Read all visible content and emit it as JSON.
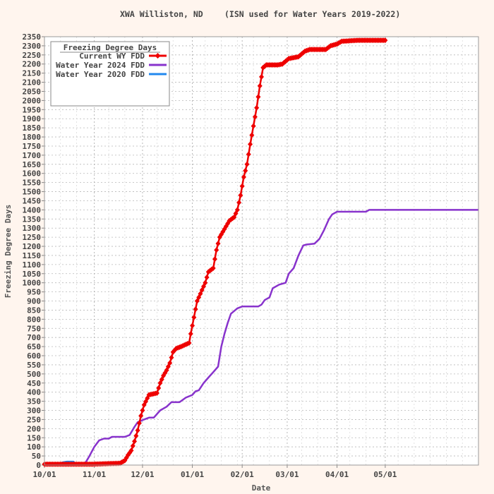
{
  "chart_data": {
    "type": "line",
    "title_left": "XWA Williston, ND",
    "title_right": "(ISN used for Water Years 2019-2022)",
    "xlabel": "Date",
    "ylabel": "Freezing Degree Days",
    "ylim": [
      0,
      2350
    ],
    "ytick_step": 50,
    "yticks": [
      "0",
      "50",
      "100",
      "150",
      "200",
      "250",
      "300",
      "350",
      "400",
      "450",
      "500",
      "550",
      "600",
      "650",
      "700",
      "750",
      "800",
      "850",
      "900",
      "950",
      "1000",
      "1050",
      "1100",
      "1150",
      "1200",
      "1250",
      "1300",
      "1350",
      "1400",
      "1450",
      "1500",
      "1550",
      "1600",
      "1650",
      "1700",
      "1750",
      "1800",
      "1850",
      "1900",
      "1950",
      "2000",
      "2050",
      "2100",
      "2150",
      "2200",
      "2250",
      "2300",
      "2350"
    ],
    "xlim_days": [
      0,
      270
    ],
    "xticks": [
      {
        "day": 0,
        "label": "10/01"
      },
      {
        "day": 31,
        "label": "11/01"
      },
      {
        "day": 61,
        "label": "12/01"
      },
      {
        "day": 92,
        "label": "01/01"
      },
      {
        "day": 123,
        "label": "02/01"
      },
      {
        "day": 151,
        "label": "03/01"
      },
      {
        "day": 182,
        "label": "04/01"
      },
      {
        "day": 212,
        "label": "05/01"
      }
    ],
    "grid": true,
    "legend": {
      "title": "Freezing Degree Days",
      "placement": "top-left"
    },
    "series": [
      {
        "name": "Current WY FDD",
        "color": "#ee0000",
        "marker": "diamond",
        "points": [
          [
            0,
            5
          ],
          [
            10,
            5
          ],
          [
            20,
            5
          ],
          [
            30,
            5
          ],
          [
            40,
            8
          ],
          [
            47,
            10
          ],
          [
            50,
            25
          ],
          [
            52,
            55
          ],
          [
            54,
            80
          ],
          [
            56,
            130
          ],
          [
            58,
            190
          ],
          [
            60,
            270
          ],
          [
            62,
            330
          ],
          [
            65,
            385
          ],
          [
            70,
            395
          ],
          [
            72,
            450
          ],
          [
            74,
            490
          ],
          [
            76,
            520
          ],
          [
            78,
            560
          ],
          [
            80,
            620
          ],
          [
            82,
            640
          ],
          [
            85,
            650
          ],
          [
            90,
            670
          ],
          [
            91,
            720
          ],
          [
            93,
            810
          ],
          [
            95,
            900
          ],
          [
            98,
            960
          ],
          [
            100,
            1000
          ],
          [
            102,
            1060
          ],
          [
            105,
            1080
          ],
          [
            107,
            1180
          ],
          [
            109,
            1250
          ],
          [
            111,
            1280
          ],
          [
            113,
            1310
          ],
          [
            115,
            1340
          ],
          [
            118,
            1360
          ],
          [
            120,
            1400
          ],
          [
            122,
            1480
          ],
          [
            124,
            1580
          ],
          [
            126,
            1650
          ],
          [
            128,
            1760
          ],
          [
            130,
            1860
          ],
          [
            132,
            1960
          ],
          [
            134,
            2080
          ],
          [
            136,
            2180
          ],
          [
            138,
            2195
          ],
          [
            145,
            2195
          ],
          [
            148,
            2200
          ],
          [
            152,
            2230
          ],
          [
            158,
            2240
          ],
          [
            162,
            2270
          ],
          [
            165,
            2280
          ],
          [
            175,
            2280
          ],
          [
            178,
            2300
          ],
          [
            182,
            2310
          ],
          [
            185,
            2325
          ],
          [
            195,
            2330
          ],
          [
            200,
            2330
          ],
          [
            212,
            2330
          ]
        ]
      },
      {
        "name": "Water Year 2024 FDD",
        "color": "#8833cc",
        "points": [
          [
            0,
            5
          ],
          [
            25,
            5
          ],
          [
            28,
            50
          ],
          [
            31,
            100
          ],
          [
            34,
            135
          ],
          [
            37,
            145
          ],
          [
            40,
            145
          ],
          [
            42,
            155
          ],
          [
            50,
            155
          ],
          [
            53,
            165
          ],
          [
            56,
            210
          ],
          [
            58,
            235
          ],
          [
            62,
            250
          ],
          [
            65,
            260
          ],
          [
            68,
            260
          ],
          [
            72,
            300
          ],
          [
            76,
            320
          ],
          [
            79,
            345
          ],
          [
            84,
            345
          ],
          [
            88,
            370
          ],
          [
            92,
            385
          ],
          [
            94,
            405
          ],
          [
            96,
            410
          ],
          [
            99,
            450
          ],
          [
            102,
            480
          ],
          [
            105,
            510
          ],
          [
            108,
            540
          ],
          [
            110,
            650
          ],
          [
            112,
            720
          ],
          [
            114,
            780
          ],
          [
            116,
            830
          ],
          [
            120,
            860
          ],
          [
            123,
            870
          ],
          [
            133,
            870
          ],
          [
            135,
            880
          ],
          [
            137,
            905
          ],
          [
            140,
            920
          ],
          [
            142,
            970
          ],
          [
            146,
            990
          ],
          [
            150,
            1000
          ],
          [
            152,
            1050
          ],
          [
            155,
            1080
          ],
          [
            158,
            1150
          ],
          [
            161,
            1205
          ],
          [
            163,
            1210
          ],
          [
            168,
            1215
          ],
          [
            171,
            1240
          ],
          [
            174,
            1290
          ],
          [
            177,
            1350
          ],
          [
            179,
            1375
          ],
          [
            182,
            1390
          ],
          [
            200,
            1390
          ],
          [
            202,
            1400
          ],
          [
            270,
            1400
          ]
        ]
      },
      {
        "name": "Water Year 2020 FDD",
        "color": "#2288ee",
        "points": [
          [
            0,
            3
          ],
          [
            4,
            3
          ],
          [
            7,
            5
          ],
          [
            10,
            10
          ],
          [
            12,
            15
          ],
          [
            14,
            18
          ],
          [
            18,
            18
          ],
          [
            19,
            5
          ]
        ]
      }
    ]
  }
}
